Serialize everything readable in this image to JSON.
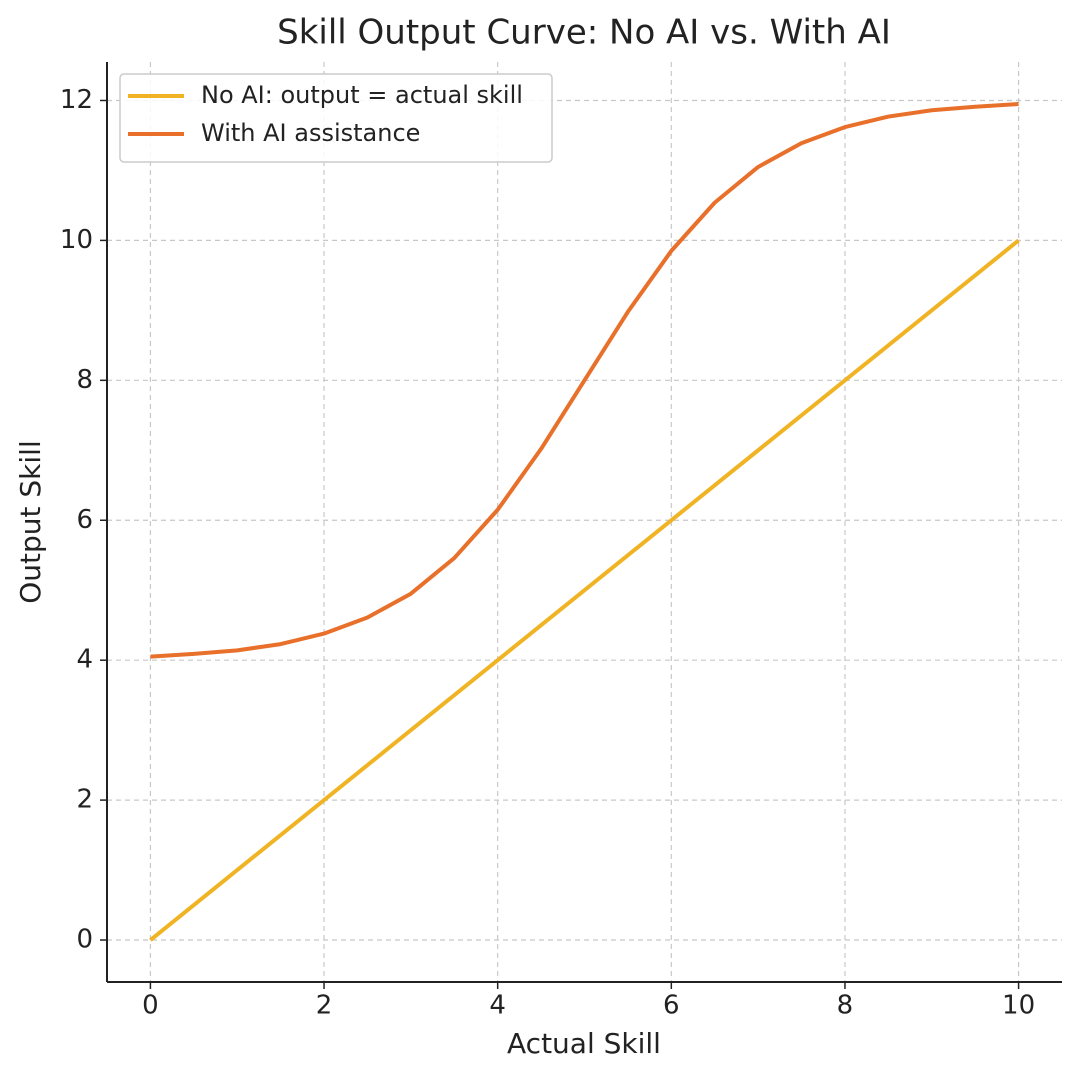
{
  "chart_data": {
    "type": "line",
    "title": "Skill Output Curve: No AI vs. With AI",
    "x_label": "Actual Skill",
    "y_label": "Output Skill",
    "series": [
      {
        "name": "No AI: output = actual skill",
        "color": "#f0b323",
        "x": [
          0,
          10
        ],
        "values": [
          0,
          10
        ]
      },
      {
        "name": "With AI assistance",
        "color": "#e8702a",
        "x": [
          0,
          0.5,
          1,
          1.5,
          2,
          2.5,
          3,
          3.5,
          4,
          4.5,
          5,
          5.5,
          6,
          6.5,
          7,
          7.5,
          8,
          8.5,
          9,
          9.5,
          10
        ],
        "values": [
          4.05,
          4.09,
          4.14,
          4.23,
          4.38,
          4.61,
          4.95,
          5.46,
          6.15,
          7.02,
          8,
          8.98,
          9.85,
          10.54,
          11.05,
          11.39,
          11.62,
          11.77,
          11.86,
          11.91,
          11.95
        ]
      }
    ],
    "xlim": [
      -0.5,
      10.5
    ],
    "ylim": [
      -0.6,
      12.55
    ],
    "xticks": [
      0,
      2,
      4,
      6,
      8,
      10
    ],
    "yticks": [
      0,
      2,
      4,
      6,
      8,
      10,
      12
    ],
    "grid": true,
    "legend": "upper-left"
  }
}
